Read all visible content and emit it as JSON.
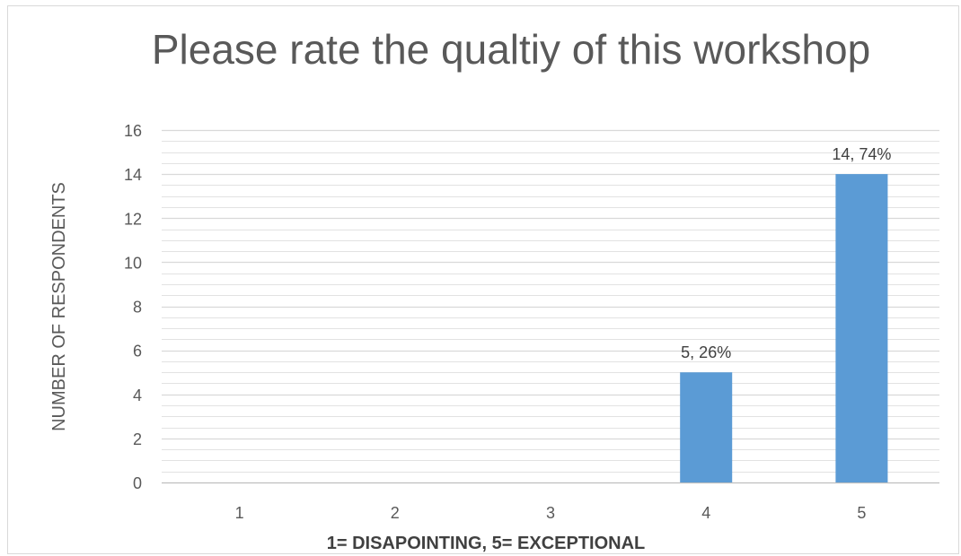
{
  "chart_data": {
    "type": "bar",
    "title": "Please rate the qualtiy of this workshop",
    "xlabel": "1= DISAPOINTING, 5= EXCEPTIONAL",
    "ylabel": "NUMBER OF RESPONDENTS",
    "categories": [
      "1",
      "2",
      "3",
      "4",
      "5"
    ],
    "values": [
      0,
      0,
      0,
      5,
      14
    ],
    "data_labels": [
      "",
      "",
      "",
      "5, 26%",
      "14, 74%"
    ],
    "ylim": [
      0,
      16
    ],
    "yticks": [
      0,
      2,
      4,
      6,
      8,
      10,
      12,
      14,
      16
    ],
    "grid": true,
    "legend": "none",
    "colors": {
      "bar": "#5b9bd5",
      "grid": "#d9d9d9",
      "text": "#595959"
    }
  }
}
